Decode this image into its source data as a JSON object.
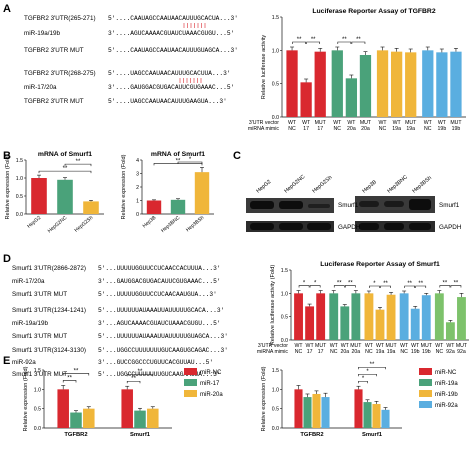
{
  "panel_letters": [
    "A",
    "B",
    "C",
    "D",
    "E"
  ],
  "panelA": {
    "rows": [
      {
        "label": "TGFBR2 3'UTR(265-271)",
        "seq": "5'....CAAUAGCCAAUAACAUUUGCACUA...3'"
      },
      {
        "label": "miR-19a/19b",
        "seq": "3'....AGUCAAAACGUAUCUAAACGUGU...5'"
      },
      {
        "label": "TGFBR2 3'UTR MUT",
        "seq": "5'....CAAUAGCCAAUAACAUUUGUAGCA...3'"
      },
      {
        "label": "TGFBR2 3'UTR(268-275)",
        "seq": "5'....UAGCCAAUAACAUUUGCACUUA...3'"
      },
      {
        "label": "miR-17/20a",
        "seq": "3'....GAUGGACGUGACAUUCGUGAAAC...5'"
      },
      {
        "label": "TGFBR2 3'UTR MUT",
        "seq": "5'....UAGCCAAUAACAUUUGAAGUA...3'"
      }
    ]
  },
  "chart_A": {
    "type": "bar",
    "title": "Luciferase Reporter Assay of TGFBR2",
    "ylabel": "Relative luciferase activity",
    "ylim": [
      0,
      1.5
    ],
    "yticks": [
      "0.0",
      "0.5",
      "1.0",
      "1.5"
    ],
    "row1_label": "3'UTR vector",
    "row2_label": "miRNA mimic",
    "groups": [
      {
        "color": "#d9282f",
        "bars": [
          {
            "v": "WT",
            "m": "NC",
            "value": 1.0,
            "err": 0.05
          },
          {
            "v": "WT",
            "m": "17",
            "value": 0.52,
            "err": 0.05
          },
          {
            "v": "MUT",
            "m": "17",
            "value": 0.98,
            "err": 0.05
          }
        ],
        "sigs": [
          {
            "from": 0,
            "to": 1,
            "text": "**"
          },
          {
            "from": 1,
            "to": 2,
            "text": "**"
          }
        ]
      },
      {
        "color": "#4aa27a",
        "bars": [
          {
            "v": "WT",
            "m": "NC",
            "value": 1.0,
            "err": 0.05
          },
          {
            "v": "WT",
            "m": "20a",
            "value": 0.58,
            "err": 0.05
          },
          {
            "v": "MUT",
            "m": "20a",
            "value": 0.93,
            "err": 0.05
          }
        ],
        "sigs": [
          {
            "from": 0,
            "to": 1,
            "text": "**"
          },
          {
            "from": 1,
            "to": 2,
            "text": "**"
          }
        ]
      },
      {
        "color": "#f0b63a",
        "bars": [
          {
            "v": "WT",
            "m": "NC",
            "value": 1.0,
            "err": 0.05
          },
          {
            "v": "WT",
            "m": "19a",
            "value": 0.98,
            "err": 0.05
          },
          {
            "v": "MUT",
            "m": "19a",
            "value": 0.97,
            "err": 0.05
          }
        ],
        "sigs": []
      },
      {
        "color": "#5aaee0",
        "bars": [
          {
            "v": "WT",
            "m": "NC",
            "value": 1.0,
            "err": 0.05
          },
          {
            "v": "WT",
            "m": "19b",
            "value": 0.97,
            "err": 0.05
          },
          {
            "v": "MUT",
            "m": "19b",
            "value": 0.98,
            "err": 0.05
          }
        ],
        "sigs": []
      }
    ]
  },
  "chart_B1": {
    "type": "bar",
    "title": "mRNA of Smurf1",
    "ylabel": "Relative expression (Fold)",
    "ylim": [
      0,
      1.5
    ],
    "yticks": [
      "0.0",
      "0.5",
      "1.0",
      "1.5"
    ],
    "categories": [
      "HepG2",
      "HepG2NC",
      "HepG2Sh"
    ],
    "values": [
      1.0,
      0.95,
      0.35
    ],
    "errors": [
      0.08,
      0.06,
      0.03
    ],
    "colors": [
      "#d9282f",
      "#4aa27a",
      "#f0b63a"
    ],
    "sigs": [
      {
        "from": 0,
        "to": 2,
        "text": "**",
        "level": 0
      },
      {
        "from": 1,
        "to": 2,
        "text": "**",
        "level": 1
      }
    ]
  },
  "chart_B2": {
    "type": "bar",
    "title": "mRNA of Smurf1",
    "ylabel": "Relative expression (Fold)",
    "ylim": [
      0,
      4
    ],
    "yticks": [
      "0",
      "1",
      "2",
      "3",
      "4"
    ],
    "categories": [
      "Hep3B",
      "Hep3BNC",
      "Hep3BSh"
    ],
    "values": [
      1.0,
      1.05,
      3.1
    ],
    "errors": [
      0.05,
      0.08,
      0.35
    ],
    "colors": [
      "#d9282f",
      "#4aa27a",
      "#f0b63a"
    ],
    "sigs": [
      {
        "from": 0,
        "to": 2,
        "text": "**",
        "level": 0
      },
      {
        "from": 1,
        "to": 2,
        "text": "*",
        "level": 1
      }
    ]
  },
  "panelC": {
    "left_lanes": [
      "HepG2",
      "HepG2NC",
      "HepG2Sh"
    ],
    "right_lanes": [
      "Hep3B",
      "Hep3BNC",
      "Hep3BSh"
    ],
    "bands": [
      "Smurf1",
      "GAPDH"
    ]
  },
  "panelD": {
    "rows": [
      {
        "label": "Smurf1 3'UTR(2866-2872)",
        "seq": "5'...UUUUUGGUUCCUCAACCACUUUA...3'"
      },
      {
        "label": "miR-17/20a",
        "seq": "3'...GAUGGACGUGACAUUCGUGAAAC...5'"
      },
      {
        "label": "Smurf1 3'UTR MUT",
        "seq": "5'...UUUUUGGUUCCUCAACAAUGUA...3'"
      },
      {
        "label": "Smurf1 3'UTR(1234-1241)",
        "seq": "5'...UUUUUUAUAAAUUAUUUUUGCACA...3'"
      },
      {
        "label": "miR-19a/19b",
        "seq": "3'...AGUCAAAACGUAUCUAAACGUGU...5'"
      },
      {
        "label": "Smurf1 3'UTR MUT",
        "seq": "5'...UUUUUUAUAAAUUAUUUUUGUAGCA...3'"
      },
      {
        "label": "Smurf1 3'UTR(3124-3130)",
        "seq": "5'...UGGCCUUUUUUUGUCAAGUGCAGAC...3'"
      },
      {
        "label": "miR-92a",
        "seq": "3'...GUCCGGCCCUGUUCACGUUAU...5'"
      },
      {
        "label": "Smurf1 3'UTR MUT",
        "seq": "5'...UGGCCUUUUUUUGUCAAGAAGUA...3'"
      }
    ]
  },
  "chart_D": {
    "type": "bar",
    "title": "Luciferase Reporter Assay of Smurf1",
    "ylabel": "Relative luciferase activity (Fold)",
    "ylim": [
      0,
      1.5
    ],
    "yticks": [
      "0.0",
      "0.5",
      "1.0",
      "1.5"
    ],
    "row1_label": "3'UTR vector",
    "row2_label": "miRNA mimic",
    "groups": [
      {
        "color": "#d9282f",
        "bars": [
          {
            "v": "WT",
            "m": "NC",
            "value": 1.0,
            "err": 0.06
          },
          {
            "v": "WT",
            "m": "17",
            "value": 0.72,
            "err": 0.05
          },
          {
            "v": "MUT",
            "m": "17",
            "value": 1.0,
            "err": 0.06
          }
        ],
        "sigs": [
          {
            "from": 0,
            "to": 1,
            "text": "*"
          },
          {
            "from": 1,
            "to": 2,
            "text": "*"
          }
        ]
      },
      {
        "color": "#4aa27a",
        "bars": [
          {
            "v": "WT",
            "m": "NC",
            "value": 1.0,
            "err": 0.06
          },
          {
            "v": "WT",
            "m": "20a",
            "value": 0.72,
            "err": 0.04
          },
          {
            "v": "MUT",
            "m": "20a",
            "value": 1.0,
            "err": 0.06
          }
        ],
        "sigs": [
          {
            "from": 0,
            "to": 1,
            "text": "**"
          },
          {
            "from": 1,
            "to": 2,
            "text": "**"
          }
        ]
      },
      {
        "color": "#f0b63a",
        "bars": [
          {
            "v": "WT",
            "m": "NC",
            "value": 1.0,
            "err": 0.05
          },
          {
            "v": "WT",
            "m": "19a",
            "value": 0.65,
            "err": 0.05
          },
          {
            "v": "MUT",
            "m": "19a",
            "value": 0.97,
            "err": 0.05
          }
        ],
        "sigs": [
          {
            "from": 0,
            "to": 1,
            "text": "*"
          },
          {
            "from": 1,
            "to": 2,
            "text": "**"
          }
        ]
      },
      {
        "color": "#5aaee0",
        "bars": [
          {
            "v": "WT",
            "m": "NC",
            "value": 1.0,
            "err": 0.05
          },
          {
            "v": "WT",
            "m": "19b",
            "value": 0.67,
            "err": 0.05
          },
          {
            "v": "MUT",
            "m": "19b",
            "value": 0.96,
            "err": 0.04
          }
        ],
        "sigs": [
          {
            "from": 0,
            "to": 1,
            "text": "**"
          },
          {
            "from": 1,
            "to": 2,
            "text": "**"
          }
        ]
      },
      {
        "color": "#7dc26b",
        "bars": [
          {
            "v": "WT",
            "m": "NC",
            "value": 1.0,
            "err": 0.06
          },
          {
            "v": "WT",
            "m": "92a",
            "value": 0.38,
            "err": 0.04
          },
          {
            "v": "MUT",
            "m": "92a",
            "value": 0.92,
            "err": 0.08
          }
        ],
        "sigs": [
          {
            "from": 0,
            "to": 1,
            "text": "**"
          },
          {
            "from": 1,
            "to": 2,
            "text": "**"
          }
        ]
      }
    ]
  },
  "chart_E1": {
    "type": "bar",
    "ylabel": "Relative expression (Fold)",
    "ylim": [
      0,
      1.5
    ],
    "yticks": [
      "0.0",
      "0.5",
      "1.0",
      "1.5"
    ],
    "categories": [
      "TGFBR2",
      "Smurf1"
    ],
    "series": [
      {
        "name": "miR-NC",
        "color": "#d9282f",
        "values": [
          1.0,
          1.0
        ],
        "errors": [
          0.1,
          0.08
        ]
      },
      {
        "name": "miR-17",
        "color": "#4aa27a",
        "values": [
          0.4,
          0.45
        ],
        "errors": [
          0.05,
          0.06
        ]
      },
      {
        "name": "miR-20a",
        "color": "#f0b63a",
        "values": [
          0.5,
          0.5
        ],
        "errors": [
          0.05,
          0.05
        ]
      }
    ],
    "sigs": [
      {
        "cat": 0,
        "from": 0,
        "to": 1,
        "text": "**",
        "level": 0
      },
      {
        "cat": 0,
        "from": 0,
        "to": 2,
        "text": "**",
        "level": 1
      },
      {
        "cat": 1,
        "from": 0,
        "to": 1,
        "text": "**",
        "level": 0
      },
      {
        "cat": 1,
        "from": 0,
        "to": 2,
        "text": "**",
        "level": 1
      }
    ]
  },
  "chart_E2": {
    "type": "bar",
    "ylabel": "Relative expression (Fold)",
    "ylim": [
      0,
      1.5
    ],
    "yticks": [
      "0.0",
      "0.5",
      "1.0",
      "1.5"
    ],
    "categories": [
      "TGFBR2",
      "Smurf1"
    ],
    "series": [
      {
        "name": "miR-NC",
        "color": "#d9282f",
        "values": [
          1.0,
          1.0
        ],
        "errors": [
          0.1,
          0.08
        ]
      },
      {
        "name": "miR-19a",
        "color": "#4aa27a",
        "values": [
          0.8,
          0.67
        ],
        "errors": [
          0.08,
          0.06
        ]
      },
      {
        "name": "miR-19b",
        "color": "#f0b63a",
        "values": [
          0.88,
          0.62
        ],
        "errors": [
          0.08,
          0.07
        ]
      },
      {
        "name": "miR-92a",
        "color": "#5aaee0",
        "values": [
          0.8,
          0.47
        ],
        "errors": [
          0.1,
          0.06
        ]
      }
    ],
    "sigs": [
      {
        "cat": 1,
        "from": 0,
        "to": 1,
        "text": "*",
        "level": 0
      },
      {
        "cat": 1,
        "from": 0,
        "to": 2,
        "text": "*",
        "level": 1
      },
      {
        "cat": 1,
        "from": 0,
        "to": 3,
        "text": "**",
        "level": 2
      }
    ]
  }
}
